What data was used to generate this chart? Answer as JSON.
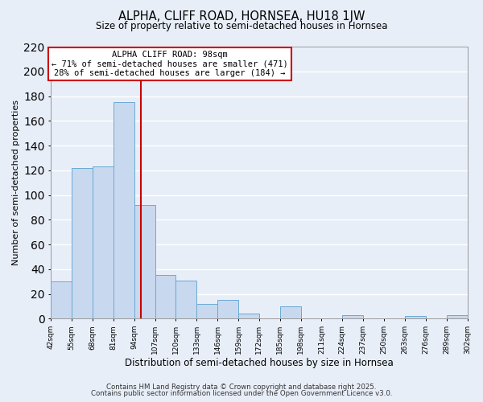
{
  "title": "ALPHA, CLIFF ROAD, HORNSEA, HU18 1JW",
  "subtitle": "Size of property relative to semi-detached houses in Hornsea",
  "xlabel": "Distribution of semi-detached houses by size in Hornsea",
  "ylabel": "Number of semi-detached properties",
  "bar_edges": [
    42,
    55,
    68,
    81,
    94,
    107,
    120,
    133,
    146,
    159,
    172,
    185,
    198,
    211,
    224,
    237,
    250,
    263,
    276,
    289,
    302
  ],
  "bar_heights": [
    30,
    122,
    123,
    175,
    92,
    35,
    31,
    12,
    15,
    4,
    0,
    10,
    0,
    0,
    3,
    0,
    0,
    2,
    0,
    3
  ],
  "bar_color": "#c8d8ee",
  "bar_edge_color": "#6aaad4",
  "vline_x": 98,
  "vline_color": "#cc0000",
  "annotation_title": "ALPHA CLIFF ROAD: 98sqm",
  "annotation_line2": "← 71% of semi-detached houses are smaller (471)",
  "annotation_line3": "28% of semi-detached houses are larger (184) →",
  "annotation_box_facecolor": "#ffffff",
  "annotation_box_edgecolor": "#cc0000",
  "ylim": [
    0,
    220
  ],
  "yticks": [
    0,
    20,
    40,
    60,
    80,
    100,
    120,
    140,
    160,
    180,
    200,
    220
  ],
  "tick_labels": [
    "42sqm",
    "55sqm",
    "68sqm",
    "81sqm",
    "94sqm",
    "107sqm",
    "120sqm",
    "133sqm",
    "146sqm",
    "159sqm",
    "172sqm",
    "185sqm",
    "198sqm",
    "211sqm",
    "224sqm",
    "237sqm",
    "250sqm",
    "263sqm",
    "276sqm",
    "289sqm",
    "302sqm"
  ],
  "bg_color": "#e8eef8",
  "grid_color": "#ffffff",
  "footer1": "Contains HM Land Registry data © Crown copyright and database right 2025.",
  "footer2": "Contains public sector information licensed under the Open Government Licence v3.0."
}
